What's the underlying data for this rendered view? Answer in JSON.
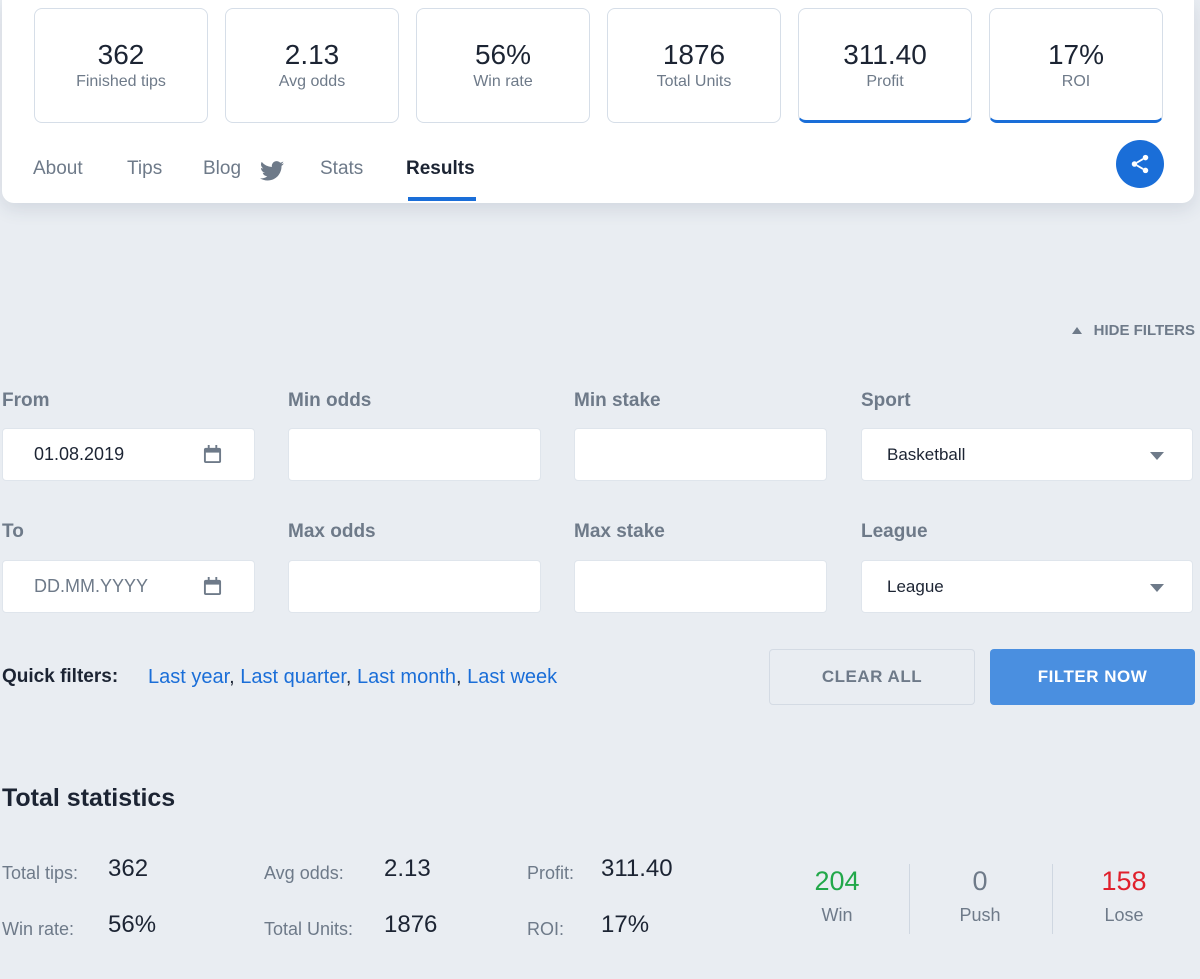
{
  "stats": [
    {
      "value": "362",
      "label": "Finished tips"
    },
    {
      "value": "2.13",
      "label": "Avg odds"
    },
    {
      "value": "56%",
      "label": "Win rate"
    },
    {
      "value": "1876",
      "label": "Total Units"
    },
    {
      "value": "311.40",
      "label": "Profit"
    },
    {
      "value": "17%",
      "label": "ROI"
    }
  ],
  "tabs": {
    "about": "About",
    "tips": "Tips",
    "blog": "Blog",
    "stats": "Stats",
    "results": "Results"
  },
  "icons": {
    "twitter": "twitter-icon",
    "share": "share-icon",
    "calendar": "calendar-icon"
  },
  "colors": {
    "accent": "#1a6ed8",
    "win": "#22a84a",
    "lose": "#e0202c"
  },
  "filters": {
    "toggle_label": "HIDE FILTERS",
    "from_label": "From",
    "from_value": "01.08.2019",
    "to_label": "To",
    "to_placeholder": "DD.MM.YYYY",
    "min_odds_label": "Min odds",
    "max_odds_label": "Max odds",
    "min_stake_label": "Min stake",
    "max_stake_label": "Max stake",
    "sport_label": "Sport",
    "sport_value": "Basketball",
    "league_label": "League",
    "league_value": "League",
    "quick_label": "Quick filters:",
    "quick": {
      "last_year": "Last year",
      "last_quarter": "Last quarter",
      "last_month": "Last month",
      "last_week": "Last week"
    },
    "clear_label": "CLEAR ALL",
    "filter_label": "FILTER NOW"
  },
  "total_statistics": {
    "title": "Total statistics",
    "total_tips_label": "Total tips:",
    "total_tips": "362",
    "win_rate_label": "Win rate:",
    "win_rate": "56%",
    "avg_odds_label": "Avg odds:",
    "avg_odds": "2.13",
    "total_units_label": "Total Units:",
    "total_units": "1876",
    "profit_label": "Profit:",
    "profit": "311.40",
    "roi_label": "ROI:",
    "roi": "17%",
    "win_count": "204",
    "win_label": "Win",
    "push_count": "0",
    "push_label": "Push",
    "lose_count": "158",
    "lose_label": "Lose"
  }
}
